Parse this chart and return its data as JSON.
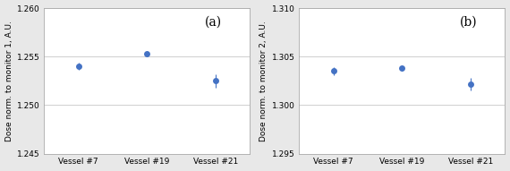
{
  "categories": [
    "Vessel #7",
    "Vessel #19",
    "Vessel #21"
  ],
  "subplot_a": {
    "values": [
      1.254,
      1.2553,
      1.2525
    ],
    "errors": [
      0.0004,
      0.00025,
      0.0007
    ],
    "ylabel": "Dose norm. to monitor 1, A.U.",
    "label": "(a)",
    "ylim": [
      1.245,
      1.26
    ],
    "yticks": [
      1.245,
      1.25,
      1.255,
      1.26
    ]
  },
  "subplot_b": {
    "values": [
      1.3035,
      1.3038,
      1.3022
    ],
    "errors": [
      0.00045,
      0.00025,
      0.00065
    ],
    "ylabel": "Dose norm. to monitor 2, A.U.",
    "label": "(b)",
    "ylim": [
      1.295,
      1.31
    ],
    "yticks": [
      1.295,
      1.3,
      1.305,
      1.31
    ]
  },
  "marker_color": "#4472C4",
  "marker_size": 5,
  "ecolor": "#4472C4",
  "capsize": 2,
  "elinewidth": 0.8,
  "figure_facecolor": "#e8e8e8",
  "axes_facecolor": "#ffffff",
  "grid_color": "#c8c8c8",
  "spine_color": "#aaaaaa",
  "label_fontsize": 6.5,
  "tick_fontsize": 6.5,
  "annotation_fontsize": 10,
  "x_positions": [
    0.5,
    1.5,
    2.5
  ],
  "xlim": [
    0,
    3
  ]
}
